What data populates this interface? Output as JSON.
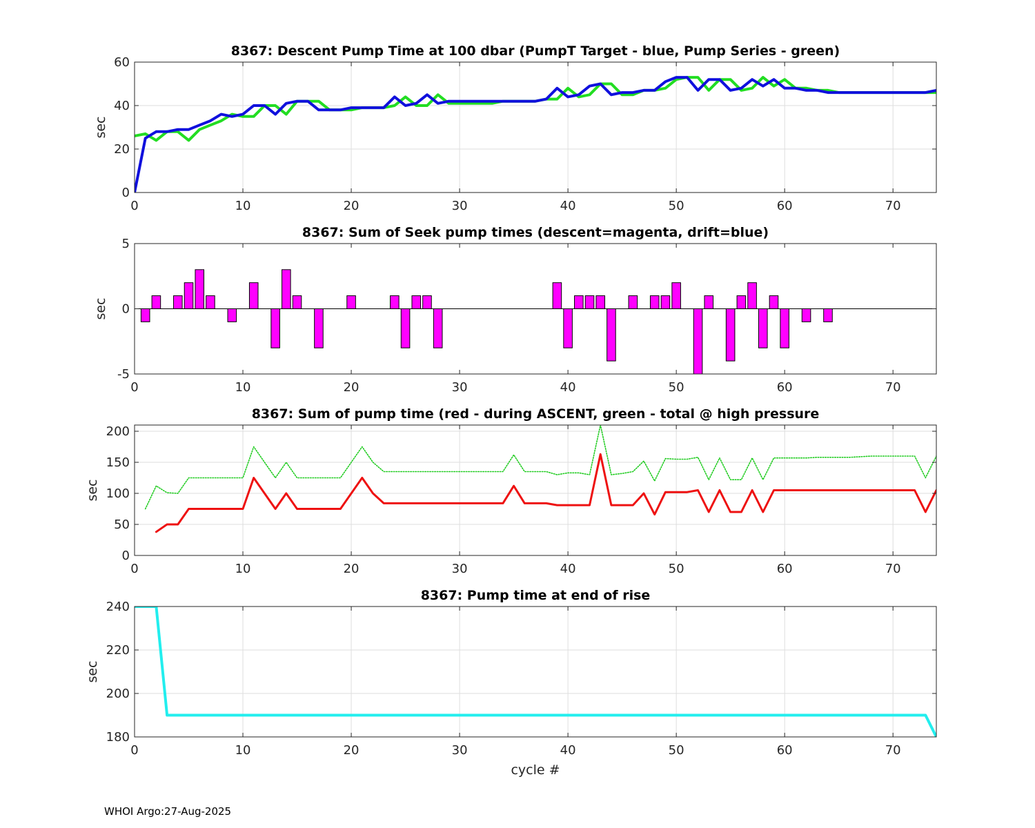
{
  "footer": "WHOI Argo:27-Aug-2025",
  "chart_data": [
    {
      "type": "line",
      "title": "8367: Descent Pump Time at 100 dbar (PumpT Target - blue, Pump Series - green)",
      "xlabel": "",
      "ylabel": "sec",
      "xlim": [
        0,
        74
      ],
      "ylim": [
        0,
        60
      ],
      "xticks": [
        0,
        10,
        20,
        30,
        40,
        50,
        60,
        70
      ],
      "yticks": [
        0,
        20,
        40,
        60
      ],
      "grid": true,
      "series": [
        {
          "color": "#22dd22",
          "style": "solid",
          "x": [
            0,
            1,
            2,
            3,
            4,
            5,
            6,
            7,
            8,
            9,
            10,
            11,
            12,
            13,
            14,
            15,
            16,
            17,
            18,
            19,
            20,
            21,
            22,
            23,
            24,
            25,
            26,
            27,
            28,
            29,
            30,
            31,
            32,
            33,
            34,
            35,
            36,
            37,
            38,
            39,
            40,
            41,
            42,
            43,
            44,
            45,
            46,
            47,
            48,
            49,
            50,
            51,
            52,
            53,
            54,
            55,
            56,
            57,
            58,
            59,
            60,
            61,
            62,
            63,
            64,
            65,
            66,
            67,
            68,
            69,
            70,
            71,
            72,
            73,
            74
          ],
          "y": [
            26,
            27,
            24,
            28,
            28,
            24,
            29,
            31,
            33,
            36,
            35,
            35,
            40,
            40,
            36,
            42,
            42,
            42,
            38,
            38,
            38,
            39,
            39,
            39,
            40,
            44,
            40,
            40,
            45,
            41,
            41,
            41,
            41,
            41,
            42,
            42,
            42,
            42,
            43,
            43,
            48,
            44,
            45,
            50,
            50,
            45,
            45,
            47,
            47,
            48,
            52,
            53,
            53,
            47,
            52,
            52,
            47,
            48,
            53,
            49,
            52,
            48,
            48,
            47,
            47,
            46,
            46,
            46,
            46,
            46,
            46,
            46,
            46,
            46,
            46
          ]
        },
        {
          "color": "#1010dd",
          "style": "solid",
          "x": [
            0,
            1,
            2,
            3,
            4,
            5,
            6,
            7,
            8,
            9,
            10,
            11,
            12,
            13,
            14,
            15,
            16,
            17,
            18,
            19,
            20,
            21,
            22,
            23,
            24,
            25,
            26,
            27,
            28,
            29,
            30,
            31,
            32,
            33,
            34,
            35,
            36,
            37,
            38,
            39,
            40,
            41,
            42,
            43,
            44,
            45,
            46,
            47,
            48,
            49,
            50,
            51,
            52,
            53,
            54,
            55,
            56,
            57,
            58,
            59,
            60,
            61,
            62,
            63,
            64,
            65,
            66,
            67,
            68,
            69,
            70,
            71,
            72,
            73,
            74
          ],
          "y": [
            0,
            25,
            28,
            28,
            29,
            29,
            31,
            33,
            36,
            35,
            36,
            40,
            40,
            36,
            41,
            42,
            42,
            38,
            38,
            38,
            39,
            39,
            39,
            39,
            44,
            40,
            41,
            45,
            41,
            42,
            42,
            42,
            42,
            42,
            42,
            42,
            42,
            42,
            43,
            48,
            44,
            45,
            49,
            50,
            45,
            46,
            46,
            47,
            47,
            51,
            53,
            53,
            47,
            52,
            52,
            47,
            48,
            52,
            49,
            52,
            48,
            48,
            47,
            47,
            46,
            46,
            46,
            46,
            46,
            46,
            46,
            46,
            46,
            46,
            47
          ]
        }
      ]
    },
    {
      "type": "bar",
      "title": "8367: Sum of Seek pump times (descent=magenta, drift=blue)",
      "xlabel": "",
      "ylabel": "sec",
      "xlim": [
        0,
        74
      ],
      "ylim": [
        -5,
        5
      ],
      "xticks": [
        0,
        10,
        20,
        30,
        40,
        50,
        60,
        70
      ],
      "yticks": [
        -5,
        0,
        5
      ],
      "grid": false,
      "baseline": 0,
      "bar_color": "#ff00ff",
      "x": [
        1,
        2,
        4,
        5,
        6,
        7,
        9,
        11,
        13,
        14,
        15,
        17,
        20,
        24,
        25,
        26,
        27,
        28,
        39,
        40,
        41,
        42,
        43,
        44,
        46,
        48,
        49,
        50,
        52,
        53,
        55,
        56,
        57,
        58,
        59,
        60,
        62,
        64
      ],
      "values": [
        -1,
        1,
        1,
        2,
        3,
        1,
        -1,
        2,
        -3,
        3,
        1,
        -3,
        1,
        1,
        -3,
        1,
        1,
        -3,
        2,
        -3,
        1,
        1,
        1,
        -4,
        1,
        1,
        1,
        2,
        -5,
        1,
        -4,
        1,
        2,
        -3,
        1,
        -3,
        -1,
        -1
      ]
    },
    {
      "type": "line",
      "title": "8367: Sum of pump time (red - during ASCENT, green - total @ high pressure",
      "xlabel": "",
      "ylabel": "sec",
      "xlim": [
        0,
        74
      ],
      "ylim": [
        0,
        210
      ],
      "xticks": [
        0,
        10,
        20,
        30,
        40,
        50,
        60,
        70
      ],
      "yticks": [
        0,
        50,
        100,
        150,
        200
      ],
      "grid": true,
      "series": [
        {
          "color": "#22cc22",
          "style": "dotted",
          "x": [
            1,
            2,
            3,
            4,
            5,
            6,
            7,
            8,
            9,
            10,
            11,
            12,
            13,
            14,
            15,
            16,
            17,
            18,
            19,
            20,
            21,
            22,
            23,
            24,
            25,
            26,
            27,
            28,
            29,
            30,
            31,
            32,
            33,
            34,
            35,
            36,
            37,
            38,
            39,
            40,
            41,
            42,
            43,
            44,
            45,
            46,
            47,
            48,
            49,
            50,
            51,
            52,
            53,
            54,
            55,
            56,
            57,
            58,
            59,
            60,
            61,
            62,
            63,
            64,
            65,
            66,
            67,
            68,
            69,
            70,
            71,
            72,
            73,
            74
          ],
          "y": [
            75,
            112,
            101,
            100,
            125,
            125,
            125,
            125,
            125,
            125,
            175,
            150,
            125,
            150,
            125,
            125,
            125,
            125,
            125,
            150,
            175,
            150,
            135,
            135,
            135,
            135,
            135,
            135,
            135,
            135,
            135,
            135,
            135,
            135,
            162,
            135,
            135,
            135,
            130,
            133,
            133,
            130,
            210,
            130,
            132,
            135,
            152,
            120,
            156,
            155,
            155,
            158,
            122,
            157,
            122,
            122,
            157,
            122,
            157,
            157,
            157,
            157,
            158,
            158,
            158,
            158,
            159,
            160,
            160,
            160,
            160,
            160,
            125,
            160
          ]
        },
        {
          "color": "#ee1111",
          "style": "solid",
          "x": [
            2,
            3,
            4,
            5,
            6,
            7,
            8,
            9,
            10,
            11,
            12,
            13,
            14,
            15,
            16,
            17,
            18,
            19,
            20,
            21,
            22,
            23,
            24,
            25,
            26,
            27,
            28,
            29,
            30,
            31,
            32,
            33,
            34,
            35,
            36,
            37,
            38,
            39,
            40,
            41,
            42,
            43,
            44,
            45,
            46,
            47,
            48,
            49,
            50,
            51,
            52,
            53,
            54,
            55,
            56,
            57,
            58,
            59,
            60,
            61,
            62,
            63,
            64,
            65,
            66,
            67,
            68,
            69,
            70,
            71,
            72,
            73,
            74
          ],
          "y": [
            38,
            50,
            50,
            75,
            75,
            75,
            75,
            75,
            75,
            125,
            100,
            75,
            100,
            75,
            75,
            75,
            75,
            75,
            100,
            125,
            100,
            84,
            84,
            84,
            84,
            84,
            84,
            84,
            84,
            84,
            84,
            84,
            84,
            112,
            84,
            84,
            84,
            81,
            81,
            81,
            81,
            163,
            81,
            81,
            81,
            100,
            66,
            102,
            102,
            102,
            105,
            70,
            105,
            70,
            70,
            105,
            70,
            105,
            105,
            105,
            105,
            105,
            105,
            105,
            105,
            105,
            105,
            105,
            105,
            105,
            105,
            70,
            105
          ]
        }
      ]
    },
    {
      "type": "line",
      "title": "8367: Pump time at end of rise",
      "xlabel": "cycle #",
      "ylabel": "sec",
      "xlim": [
        0,
        74
      ],
      "ylim": [
        180,
        240
      ],
      "xticks": [
        0,
        10,
        20,
        30,
        40,
        50,
        60,
        70
      ],
      "yticks": [
        180,
        200,
        220,
        240
      ],
      "grid": true,
      "series": [
        {
          "color": "#22eeee",
          "style": "solid",
          "x": [
            0,
            1,
            2,
            3,
            4,
            5,
            10,
            20,
            30,
            40,
            50,
            60,
            70,
            73,
            74
          ],
          "y": [
            240,
            240,
            240,
            190,
            190,
            190,
            190,
            190,
            190,
            190,
            190,
            190,
            190,
            190,
            180
          ]
        }
      ]
    }
  ]
}
